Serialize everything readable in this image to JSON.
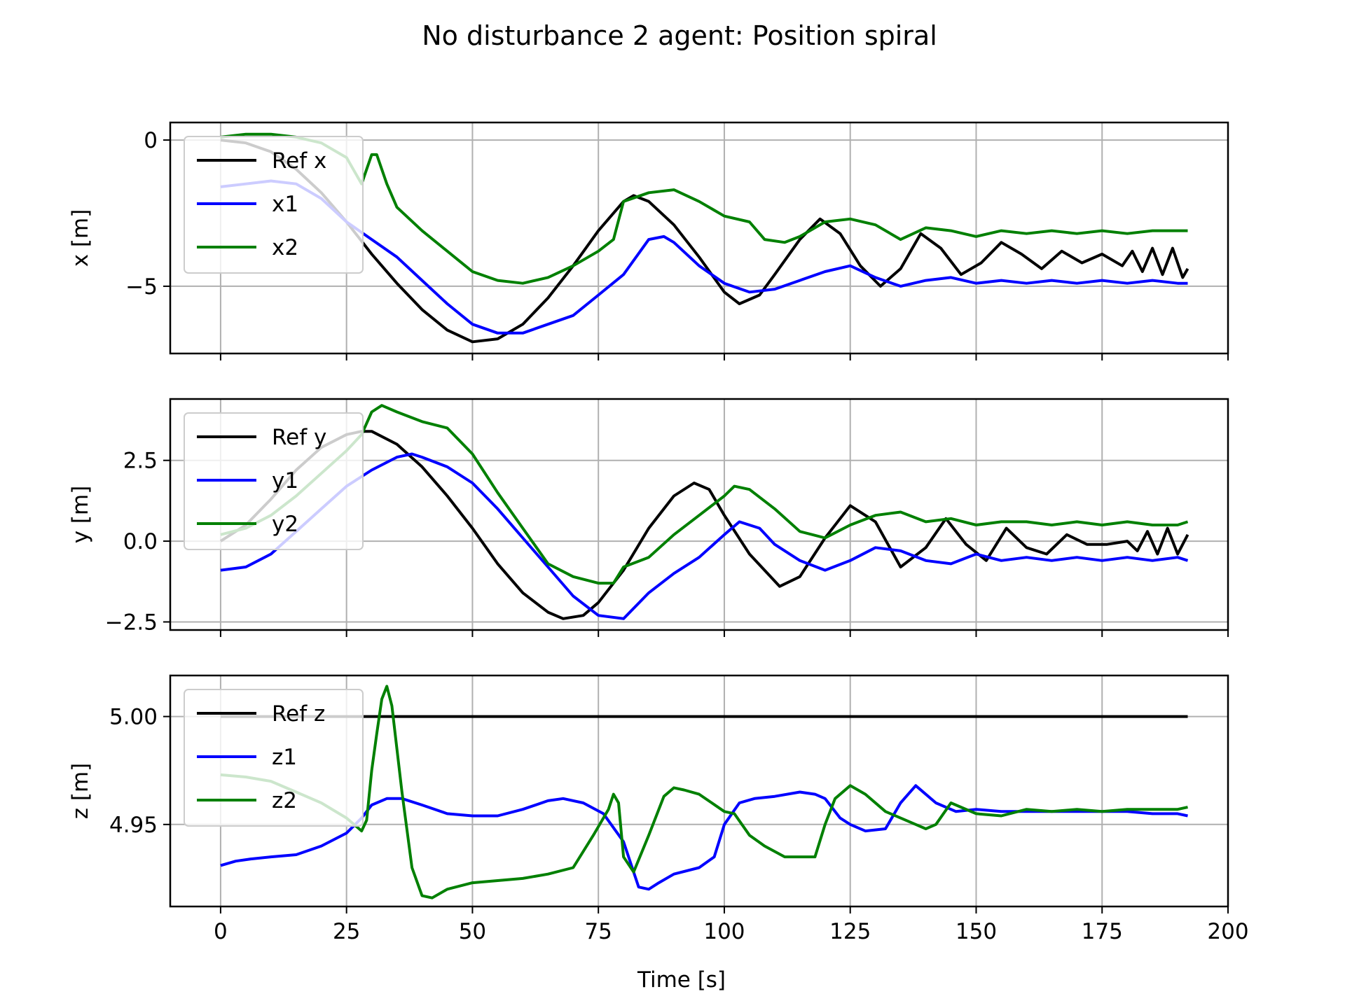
{
  "figure": {
    "title": "No disturbance 2 agent: Position spiral",
    "xlabel": "Time [s]"
  },
  "colors": {
    "ref": "#000000",
    "agent1": "#0000ff",
    "agent2": "#008000",
    "grid": "#b0b0b0"
  },
  "chart_data": [
    {
      "type": "line",
      "ylabel": "x [m]",
      "xlim": [
        -10,
        200
      ],
      "ylim": [
        -7.3,
        0.6
      ],
      "xticks": [
        0,
        25,
        50,
        75,
        100,
        125,
        150,
        175,
        200
      ],
      "yticks": [
        0,
        -5
      ],
      "ytick_labels": [
        "0",
        "−5"
      ],
      "show_xtick_labels": false,
      "grid": true,
      "legend_position": "upper-left",
      "series": [
        {
          "name": "Ref x",
          "color": "#000000",
          "x": [
            0,
            5,
            10,
            15,
            20,
            25,
            30,
            35,
            40,
            45,
            50,
            55,
            60,
            65,
            70,
            75,
            80,
            82,
            85,
            90,
            95,
            100,
            103,
            107,
            110,
            115,
            119,
            123,
            127,
            131,
            135,
            139,
            143,
            147,
            151,
            155,
            159,
            163,
            167,
            171,
            175,
            179,
            181,
            183,
            185,
            187,
            189,
            191,
            192
          ],
          "y": [
            0,
            -0.1,
            -0.4,
            -1.0,
            -1.8,
            -2.8,
            -3.9,
            -4.9,
            -5.8,
            -6.5,
            -6.9,
            -6.8,
            -6.3,
            -5.4,
            -4.3,
            -3.1,
            -2.1,
            -1.9,
            -2.1,
            -2.9,
            -4.0,
            -5.2,
            -5.6,
            -5.3,
            -4.6,
            -3.4,
            -2.7,
            -3.2,
            -4.3,
            -5.0,
            -4.4,
            -3.2,
            -3.7,
            -4.6,
            -4.2,
            -3.5,
            -3.9,
            -4.4,
            -3.8,
            -4.2,
            -3.9,
            -4.3,
            -3.8,
            -4.5,
            -3.7,
            -4.6,
            -3.7,
            -4.7,
            -4.4
          ]
        },
        {
          "name": "x1",
          "color": "#0000ff",
          "x": [
            0,
            5,
            10,
            15,
            20,
            25,
            30,
            35,
            40,
            45,
            50,
            55,
            60,
            65,
            70,
            75,
            80,
            85,
            88,
            90,
            95,
            100,
            105,
            110,
            115,
            120,
            125,
            130,
            135,
            140,
            145,
            150,
            155,
            160,
            165,
            170,
            175,
            180,
            185,
            190,
            192
          ],
          "y": [
            -1.6,
            -1.5,
            -1.4,
            -1.5,
            -2.0,
            -2.8,
            -3.4,
            -4.0,
            -4.8,
            -5.6,
            -6.3,
            -6.6,
            -6.6,
            -6.3,
            -6.0,
            -5.3,
            -4.6,
            -3.4,
            -3.3,
            -3.5,
            -4.3,
            -4.9,
            -5.2,
            -5.1,
            -4.8,
            -4.5,
            -4.3,
            -4.7,
            -5.0,
            -4.8,
            -4.7,
            -4.9,
            -4.8,
            -4.9,
            -4.8,
            -4.9,
            -4.8,
            -4.9,
            -4.8,
            -4.9,
            -4.9
          ]
        },
        {
          "name": "x2",
          "color": "#008000",
          "x": [
            0,
            5,
            10,
            15,
            20,
            25,
            28,
            30,
            31,
            33,
            35,
            40,
            45,
            50,
            55,
            60,
            65,
            70,
            75,
            78,
            80,
            85,
            90,
            95,
            100,
            105,
            108,
            112,
            115,
            120,
            125,
            130,
            135,
            140,
            145,
            150,
            155,
            160,
            165,
            170,
            175,
            180,
            185,
            190,
            192
          ],
          "y": [
            0.1,
            0.2,
            0.2,
            0.1,
            -0.1,
            -0.6,
            -1.5,
            -0.5,
            -0.5,
            -1.5,
            -2.3,
            -3.1,
            -3.8,
            -4.5,
            -4.8,
            -4.9,
            -4.7,
            -4.3,
            -3.8,
            -3.4,
            -2.1,
            -1.8,
            -1.7,
            -2.1,
            -2.6,
            -2.8,
            -3.4,
            -3.5,
            -3.3,
            -2.8,
            -2.7,
            -2.9,
            -3.4,
            -3.0,
            -3.1,
            -3.3,
            -3.1,
            -3.2,
            -3.1,
            -3.2,
            -3.1,
            -3.2,
            -3.1,
            -3.1,
            -3.1
          ]
        }
      ]
    },
    {
      "type": "line",
      "ylabel": "y [m]",
      "xlim": [
        -10,
        200
      ],
      "ylim": [
        -2.75,
        4.4
      ],
      "xticks": [
        0,
        25,
        50,
        75,
        100,
        125,
        150,
        175,
        200
      ],
      "yticks": [
        2.5,
        0.0,
        -2.5
      ],
      "ytick_labels": [
        "2.5",
        "0.0",
        "−2.5"
      ],
      "show_xtick_labels": false,
      "grid": true,
      "legend_position": "upper-left",
      "series": [
        {
          "name": "Ref y",
          "color": "#000000",
          "x": [
            0,
            5,
            10,
            15,
            20,
            25,
            28,
            30,
            35,
            40,
            45,
            50,
            55,
            60,
            65,
            68,
            72,
            75,
            80,
            85,
            90,
            94,
            97,
            100,
            105,
            111,
            115,
            120,
            125,
            130,
            135,
            140,
            144,
            148,
            152,
            156,
            160,
            164,
            168,
            172,
            176,
            180,
            182,
            184,
            186,
            188,
            190,
            192
          ],
          "y": [
            0,
            0.5,
            1.3,
            2.2,
            2.9,
            3.3,
            3.4,
            3.4,
            3.0,
            2.3,
            1.4,
            0.4,
            -0.7,
            -1.6,
            -2.2,
            -2.4,
            -2.3,
            -1.9,
            -0.9,
            0.4,
            1.4,
            1.8,
            1.6,
            0.8,
            -0.4,
            -1.4,
            -1.1,
            0.1,
            1.1,
            0.6,
            -0.8,
            -0.2,
            0.7,
            -0.1,
            -0.6,
            0.4,
            -0.2,
            -0.4,
            0.2,
            -0.1,
            -0.1,
            0.0,
            -0.3,
            0.3,
            -0.4,
            0.4,
            -0.4,
            0.2
          ]
        },
        {
          "name": "y1",
          "color": "#0000ff",
          "x": [
            0,
            5,
            10,
            15,
            20,
            25,
            30,
            35,
            38,
            40,
            45,
            50,
            55,
            60,
            65,
            70,
            75,
            80,
            85,
            90,
            95,
            100,
            103,
            107,
            110,
            115,
            120,
            125,
            130,
            135,
            140,
            145,
            150,
            155,
            160,
            165,
            170,
            175,
            180,
            185,
            190,
            192
          ],
          "y": [
            -0.9,
            -0.8,
            -0.4,
            0.3,
            1.0,
            1.7,
            2.2,
            2.6,
            2.7,
            2.6,
            2.3,
            1.8,
            1.0,
            0.1,
            -0.8,
            -1.7,
            -2.3,
            -2.4,
            -1.6,
            -1.0,
            -0.5,
            0.2,
            0.6,
            0.4,
            -0.1,
            -0.6,
            -0.9,
            -0.6,
            -0.2,
            -0.3,
            -0.6,
            -0.7,
            -0.4,
            -0.6,
            -0.5,
            -0.6,
            -0.5,
            -0.6,
            -0.5,
            -0.6,
            -0.5,
            -0.6
          ]
        },
        {
          "name": "y2",
          "color": "#008000",
          "x": [
            0,
            5,
            10,
            15,
            20,
            25,
            28,
            30,
            32,
            35,
            40,
            45,
            50,
            55,
            60,
            65,
            70,
            75,
            78,
            80,
            85,
            90,
            95,
            100,
            102,
            105,
            110,
            115,
            120,
            125,
            130,
            135,
            140,
            145,
            150,
            155,
            160,
            165,
            170,
            175,
            180,
            185,
            190,
            192
          ],
          "y": [
            0.2,
            0.4,
            0.8,
            1.4,
            2.1,
            2.8,
            3.3,
            4.0,
            4.2,
            4.0,
            3.7,
            3.5,
            2.7,
            1.5,
            0.4,
            -0.7,
            -1.1,
            -1.3,
            -1.3,
            -0.8,
            -0.5,
            0.2,
            0.8,
            1.4,
            1.7,
            1.6,
            1.0,
            0.3,
            0.1,
            0.5,
            0.8,
            0.9,
            0.6,
            0.7,
            0.5,
            0.6,
            0.6,
            0.5,
            0.6,
            0.5,
            0.6,
            0.5,
            0.5,
            0.6
          ]
        }
      ]
    },
    {
      "type": "line",
      "ylabel": "z [m]",
      "xlim": [
        -10,
        200
      ],
      "ylim": [
        4.912,
        5.019
      ],
      "xticks": [
        0,
        25,
        50,
        75,
        100,
        125,
        150,
        175,
        200
      ],
      "yticks": [
        5.0,
        4.95
      ],
      "ytick_labels": [
        "5.00",
        "4.95"
      ],
      "show_xtick_labels": true,
      "xtick_labels": [
        "0",
        "25",
        "50",
        "75",
        "100",
        "125",
        "150",
        "175",
        "200"
      ],
      "grid": true,
      "legend_position": "upper-left",
      "series": [
        {
          "name": "Ref z",
          "color": "#000000",
          "x": [
            0,
            192
          ],
          "y": [
            5.0,
            5.0
          ]
        },
        {
          "name": "z1",
          "color": "#0000ff",
          "x": [
            0,
            3,
            6,
            10,
            15,
            20,
            25,
            28,
            30,
            33,
            36,
            40,
            45,
            50,
            55,
            60,
            65,
            68,
            72,
            76,
            80,
            83,
            85,
            87,
            90,
            95,
            98,
            100,
            103,
            106,
            110,
            115,
            118,
            120,
            123,
            125,
            128,
            132,
            135,
            138,
            142,
            146,
            150,
            155,
            160,
            165,
            170,
            175,
            180,
            185,
            190,
            192
          ],
          "y": [
            4.931,
            4.933,
            4.934,
            4.935,
            4.936,
            4.94,
            4.946,
            4.953,
            4.959,
            4.962,
            4.962,
            4.959,
            4.955,
            4.954,
            4.954,
            4.957,
            4.961,
            4.962,
            4.96,
            4.955,
            4.942,
            4.921,
            4.92,
            4.923,
            4.927,
            4.93,
            4.935,
            4.95,
            4.96,
            4.962,
            4.963,
            4.965,
            4.964,
            4.962,
            4.953,
            4.95,
            4.947,
            4.948,
            4.96,
            4.968,
            4.96,
            4.956,
            4.957,
            4.956,
            4.956,
            4.956,
            4.956,
            4.956,
            4.956,
            4.955,
            4.955,
            4.954
          ]
        },
        {
          "name": "z2",
          "color": "#008000",
          "x": [
            0,
            5,
            10,
            15,
            20,
            25,
            28,
            29,
            30,
            31,
            32,
            33,
            34,
            35,
            36,
            38,
            40,
            42,
            45,
            50,
            55,
            60,
            65,
            70,
            74,
            77,
            78,
            79,
            80,
            82,
            85,
            88,
            90,
            92,
            95,
            100,
            102,
            105,
            108,
            112,
            115,
            118,
            120,
            122,
            125,
            128,
            132,
            135,
            138,
            140,
            142,
            145,
            150,
            155,
            160,
            165,
            170,
            175,
            180,
            185,
            190,
            192
          ],
          "y": [
            4.973,
            4.972,
            4.97,
            4.965,
            4.96,
            4.953,
            4.947,
            4.952,
            4.975,
            4.992,
            5.008,
            5.014,
            5.005,
            4.985,
            4.965,
            4.93,
            4.917,
            4.916,
            4.92,
            4.923,
            4.924,
            4.925,
            4.927,
            4.93,
            4.945,
            4.957,
            4.964,
            4.96,
            4.935,
            4.928,
            4.945,
            4.963,
            4.967,
            4.966,
            4.964,
            4.956,
            4.955,
            4.945,
            4.94,
            4.935,
            4.935,
            4.935,
            4.95,
            4.962,
            4.968,
            4.964,
            4.956,
            4.953,
            4.95,
            4.948,
            4.95,
            4.96,
            4.955,
            4.954,
            4.957,
            4.956,
            4.957,
            4.956,
            4.957,
            4.957,
            4.957,
            4.958
          ]
        }
      ]
    }
  ]
}
